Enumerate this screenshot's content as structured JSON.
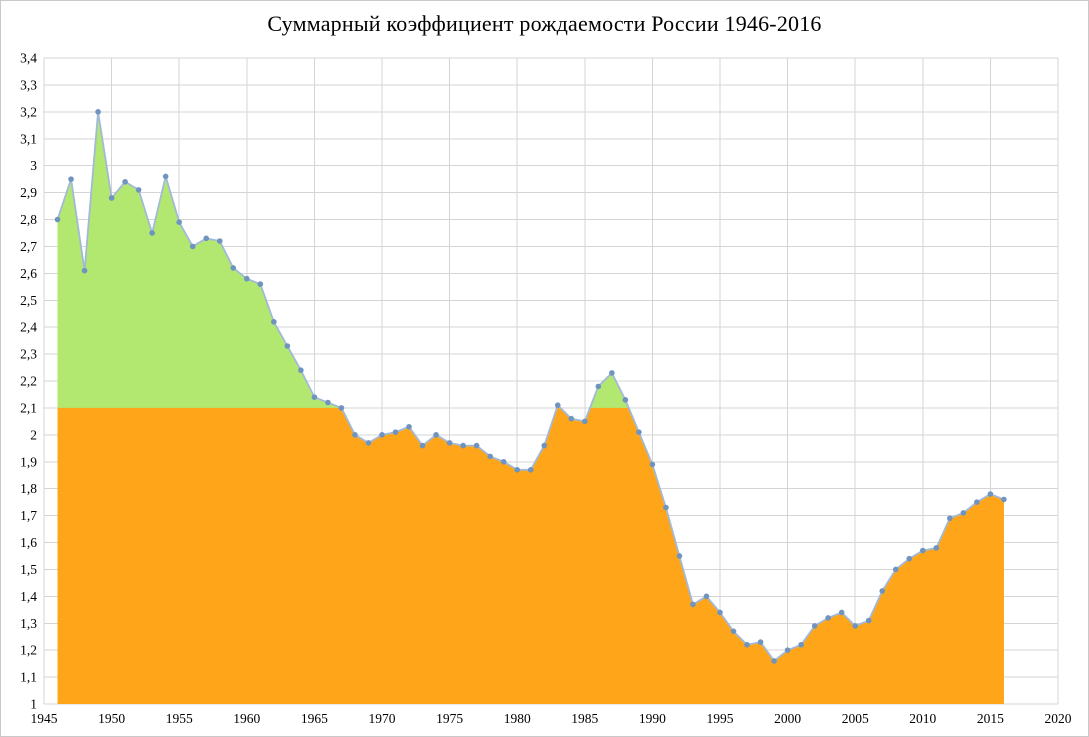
{
  "chart_data": {
    "type": "area",
    "title": "Суммарный коэффициент рождаемости России 1946-2016",
    "xlabel": "",
    "ylabel": "",
    "xlim": [
      1945,
      2020
    ],
    "ylim": [
      1,
      3.4
    ],
    "x_tick_step": 5,
    "y_tick_step": 0.1,
    "grid": true,
    "legend": "none",
    "reference_level": 2.1,
    "x_tick_labels": [
      "1945",
      "1950",
      "1955",
      "1960",
      "1965",
      "1970",
      "1975",
      "1980",
      "1985",
      "1990",
      "1995",
      "2000",
      "2005",
      "2010",
      "2015",
      "2020"
    ],
    "y_tick_labels": [
      "1",
      "1,1",
      "1,2",
      "1,3",
      "1,4",
      "1,5",
      "1,6",
      "1,7",
      "1,8",
      "1,9",
      "2",
      "2,1",
      "2,2",
      "2,3",
      "2,4",
      "2,5",
      "2,6",
      "2,7",
      "2,8",
      "2,9",
      "3",
      "3,1",
      "3,2",
      "3,3",
      "3,4"
    ],
    "x": [
      1946,
      1947,
      1948,
      1949,
      1950,
      1951,
      1952,
      1953,
      1954,
      1955,
      1956,
      1957,
      1958,
      1959,
      1960,
      1961,
      1962,
      1963,
      1964,
      1965,
      1966,
      1967,
      1968,
      1969,
      1970,
      1971,
      1972,
      1973,
      1974,
      1975,
      1976,
      1977,
      1978,
      1979,
      1980,
      1981,
      1982,
      1983,
      1984,
      1985,
      1986,
      1987,
      1988,
      1989,
      1990,
      1991,
      1992,
      1993,
      1994,
      1995,
      1996,
      1997,
      1998,
      1999,
      2000,
      2001,
      2002,
      2003,
      2004,
      2005,
      2006,
      2007,
      2008,
      2009,
      2010,
      2011,
      2012,
      2013,
      2014,
      2015,
      2016
    ],
    "values": [
      2.8,
      2.95,
      2.61,
      3.2,
      2.88,
      2.94,
      2.91,
      2.75,
      2.96,
      2.79,
      2.7,
      2.73,
      2.72,
      2.62,
      2.58,
      2.56,
      2.42,
      2.33,
      2.24,
      2.14,
      2.12,
      2.1,
      2.0,
      1.97,
      2.0,
      2.01,
      2.03,
      1.96,
      2.0,
      1.97,
      1.96,
      1.96,
      1.92,
      1.9,
      1.87,
      1.87,
      1.96,
      2.11,
      2.06,
      2.05,
      2.18,
      2.23,
      2.13,
      2.01,
      1.89,
      1.73,
      1.55,
      1.37,
      1.4,
      1.34,
      1.27,
      1.22,
      1.23,
      1.16,
      1.2,
      1.22,
      1.29,
      1.32,
      1.34,
      1.29,
      1.31,
      1.42,
      1.5,
      1.54,
      1.57,
      1.58,
      1.69,
      1.71,
      1.75,
      1.78,
      1.76
    ],
    "colors": {
      "area_below_replacement": "#FFA519",
      "area_above_replacement": "#B2E870",
      "line": "#A2B9D8",
      "marker": "#6F94C0",
      "grid": "#D5D5D5",
      "axis_text": "#000000"
    }
  }
}
